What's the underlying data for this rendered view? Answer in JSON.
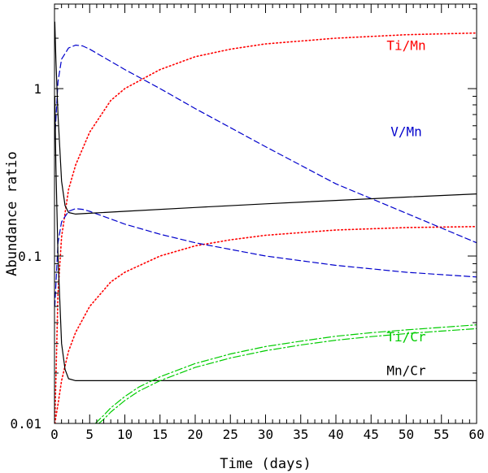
{
  "chart_data": {
    "type": "line",
    "title": "",
    "xlabel": "Time (days)",
    "ylabel": "Abundance ratio",
    "xlim": [
      0,
      60
    ],
    "ylim": [
      0.01,
      3.2
    ],
    "yscale": "log",
    "grid": false,
    "x_ticks": [
      0,
      5,
      10,
      15,
      20,
      25,
      30,
      35,
      40,
      45,
      50,
      55,
      60
    ],
    "x_tick_labels": [
      "0",
      "5",
      "10",
      "15",
      "20",
      "25",
      "30",
      "35",
      "40",
      "45",
      "50",
      "55",
      "60"
    ],
    "y_ticks": [
      0.01,
      0.1,
      1
    ],
    "y_tick_labels": [
      "0.01",
      "0.1",
      "1"
    ],
    "colors": {
      "Ti/Mn": "#ff0000",
      "V/Mn": "#0000cc",
      "Mn/Cr": "#000000",
      "Ti/Cr": "#00cc00"
    },
    "labels": [
      {
        "text": "Ti/Mn",
        "color": "#ff0000",
        "x": 50,
        "y": 1.7
      },
      {
        "text": "V/Mn",
        "color": "#0000cc",
        "x": 50,
        "y": 0.52
      },
      {
        "text": "Ti/Cr",
        "color": "#00cc00",
        "x": 50,
        "y": 0.031
      },
      {
        "text": "Mn/Cr",
        "color": "#000000",
        "x": 50,
        "y": 0.0195
      }
    ],
    "series": [
      {
        "name": "Ti/Mn (upper)",
        "style": "dotted",
        "color": "#ff0000",
        "x": [
          0.05,
          0.5,
          1,
          2,
          3,
          5,
          8,
          10,
          15,
          20,
          25,
          30,
          40,
          50,
          60
        ],
        "values": [
          0.01,
          0.06,
          0.13,
          0.25,
          0.35,
          0.55,
          0.85,
          1.0,
          1.3,
          1.55,
          1.72,
          1.85,
          2.0,
          2.1,
          2.15
        ]
      },
      {
        "name": "Ti/Mn (lower)",
        "style": "dotted",
        "color": "#ff0000",
        "x": [
          0.05,
          0.5,
          1,
          2,
          3,
          5,
          8,
          10,
          15,
          20,
          25,
          30,
          40,
          50,
          60
        ],
        "values": [
          0.01,
          0.013,
          0.018,
          0.027,
          0.035,
          0.05,
          0.07,
          0.08,
          0.1,
          0.115,
          0.125,
          0.133,
          0.143,
          0.148,
          0.15
        ]
      },
      {
        "name": "V/Mn (upper)",
        "style": "dashed",
        "color": "#0000cc",
        "x": [
          0.05,
          0.5,
          1,
          2,
          3,
          4,
          5,
          10,
          15,
          20,
          30,
          40,
          50,
          60
        ],
        "values": [
          0.5,
          1.1,
          1.5,
          1.75,
          1.82,
          1.8,
          1.72,
          1.3,
          1.0,
          0.76,
          0.45,
          0.27,
          0.18,
          0.12
        ]
      },
      {
        "name": "V/Mn (lower)",
        "style": "dashed",
        "color": "#0000cc",
        "x": [
          0.05,
          0.5,
          1,
          2,
          3,
          4,
          5,
          10,
          15,
          20,
          30,
          40,
          50,
          60
        ],
        "values": [
          0.05,
          0.12,
          0.16,
          0.185,
          0.192,
          0.19,
          0.185,
          0.155,
          0.135,
          0.12,
          0.1,
          0.088,
          0.08,
          0.075
        ]
      },
      {
        "name": "Mn/Cr (upper)",
        "style": "solid",
        "color": "#000000",
        "x": [
          0.05,
          0.2,
          0.5,
          1,
          1.5,
          2,
          3,
          5,
          10,
          20,
          30,
          40,
          50,
          60
        ],
        "values": [
          2.5,
          1.5,
          0.7,
          0.28,
          0.2,
          0.182,
          0.178,
          0.18,
          0.185,
          0.195,
          0.205,
          0.215,
          0.225,
          0.235
        ]
      },
      {
        "name": "Mn/Cr (lower)",
        "style": "solid",
        "color": "#000000",
        "x": [
          0.05,
          0.2,
          0.5,
          1,
          1.5,
          2,
          3,
          5,
          10,
          20,
          40,
          60
        ],
        "values": [
          0.9,
          0.35,
          0.1,
          0.03,
          0.021,
          0.0185,
          0.018,
          0.018,
          0.018,
          0.018,
          0.018,
          0.018
        ]
      },
      {
        "name": "Ti/Cr (upper)",
        "style": "dashdot",
        "color": "#00cc00",
        "x": [
          5.8,
          7,
          8,
          10,
          12,
          15,
          20,
          25,
          30,
          35,
          40,
          45,
          50,
          55,
          60
        ],
        "values": [
          0.01,
          0.0112,
          0.0124,
          0.0145,
          0.0165,
          0.019,
          0.0228,
          0.026,
          0.0288,
          0.031,
          0.0332,
          0.0348,
          0.0362,
          0.0375,
          0.0388
        ]
      },
      {
        "name": "Ti/Cr (lower)",
        "style": "dashdot",
        "color": "#00cc00",
        "x": [
          6.3,
          7,
          8,
          10,
          12,
          15,
          20,
          25,
          30,
          35,
          40,
          45,
          50,
          55,
          60
        ],
        "values": [
          0.01,
          0.0106,
          0.0117,
          0.0137,
          0.0156,
          0.018,
          0.0216,
          0.0246,
          0.0272,
          0.0294,
          0.0314,
          0.033,
          0.0344,
          0.0356,
          0.0368
        ]
      }
    ]
  }
}
